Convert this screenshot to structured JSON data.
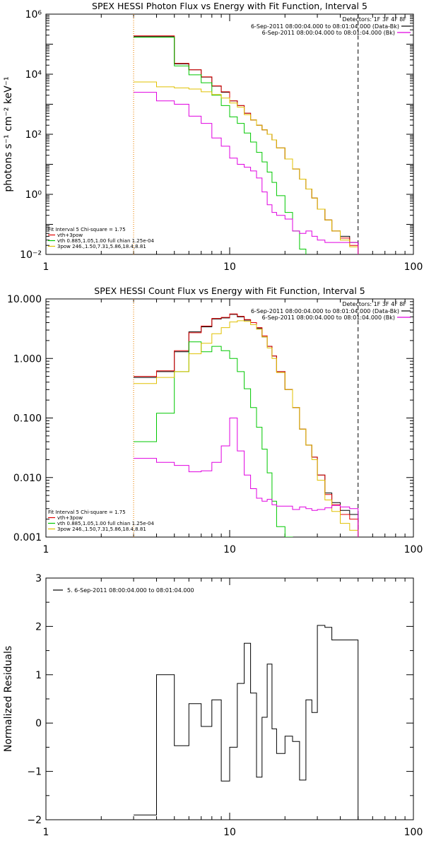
{
  "chart_data": [
    {
      "type": "line",
      "title": "SPEX HESSI Photon Flux vs Energy with Fit Function, Interval 5",
      "xlabel": "",
      "ylabel": "photons s⁻¹ cm⁻² keV⁻¹",
      "xscale": "log",
      "yscale": "log",
      "xlim": [
        1,
        100
      ],
      "ylim": [
        0.01,
        1000000
      ],
      "x_ticks": [
        {
          "v": 1,
          "label": "1"
        },
        {
          "v": 10,
          "label": "10"
        },
        {
          "v": 100,
          "label": "100"
        }
      ],
      "y_ticks": [
        {
          "v": 0.01,
          "label": "10⁻²"
        },
        {
          "v": 1,
          "label": "10⁰"
        },
        {
          "v": 100,
          "label": "10²"
        },
        {
          "v": 10000,
          "label": "10⁴"
        },
        {
          "v": 1000000,
          "label": "10⁶"
        }
      ],
      "vlines": [
        {
          "x": 3,
          "style": "dotted",
          "color": "#000000"
        },
        {
          "x": 3,
          "style": "dotted",
          "color": "#ff8c00"
        },
        {
          "x": 50,
          "style": "dashed",
          "color": "#000000"
        }
      ],
      "bin_edges": [
        3,
        4,
        5,
        6,
        7,
        8,
        9,
        10,
        11,
        12,
        13,
        14,
        15,
        16,
        17,
        18,
        20,
        22,
        24,
        26,
        28,
        30,
        33,
        36,
        40,
        45,
        50
      ],
      "series": [
        {
          "name": "data",
          "color": "#000000",
          "values": [
            180000,
            180000,
            22000,
            14000,
            8000,
            4000,
            2500,
            1300,
            900,
            500,
            300,
            200,
            140,
            100,
            65,
            35,
            15,
            7,
            3.2,
            1.5,
            0.75,
            0.32,
            0.14,
            0.06,
            0.04,
            0.025
          ]
        },
        {
          "name": "vth+3pow",
          "color": "#e00000",
          "values": [
            190000,
            190000,
            23000,
            14000,
            8200,
            4100,
            2600,
            1300,
            900,
            500,
            300,
            200,
            140,
            100,
            65,
            35,
            15,
            7,
            3.2,
            1.5,
            0.75,
            0.32,
            0.14,
            0.06,
            0.035,
            0.02
          ]
        },
        {
          "name": "vth 0.885,1.05,1.00  full chian 1.25e-04",
          "color": "#00c800",
          "values": [
            170000,
            170000,
            19000,
            9500,
            5200,
            2000,
            900,
            380,
            230,
            110,
            55,
            25,
            12,
            5.5,
            2.5,
            0.9,
            0.25,
            0.06,
            0.015,
            0.006,
            0.004
          ]
        },
        {
          "name": "3pow 246.,1.50,7.31,5.86,18.4,8.81",
          "color": "#e0c000",
          "values": [
            5500,
            3800,
            3500,
            3200,
            2600,
            2100,
            1600,
            1100,
            800,
            450,
            300,
            200,
            140,
            100,
            65,
            35,
            15,
            7,
            3.2,
            1.5,
            0.75,
            0.32,
            0.14,
            0.06,
            0.03,
            0.018
          ]
        },
        {
          "name": "",
          "color": "#e000e0",
          "values": [
            2500,
            1300,
            1000,
            400,
            230,
            75,
            40,
            16,
            10,
            8,
            6,
            3.5,
            1.2,
            0.45,
            0.25,
            0.2,
            0.15,
            0.06,
            0.05,
            0.06,
            0.04,
            0.03,
            0.025,
            0.025,
            0.025,
            0.025
          ]
        }
      ],
      "legend_top": {
        "title": "Detectors: 1F 3F 4F 8F",
        "entries": [
          {
            "label": "6-Sep-2011 08:00:04.000 to 08:01:04.000 (Data-Bk)",
            "color": "#000000"
          },
          {
            "label": "6-Sep-2011 08:00:04.000 to 08:01:04.000 (Bk)",
            "color": "#e000e0"
          }
        ]
      },
      "legend_fit": {
        "header": "Fit Interval 5    Chi-square = 1.75",
        "entries": [
          {
            "label": "vth+3pow",
            "color": "#e00000"
          },
          {
            "label": "vth 0.885,1.05,1.00  full chian 1.25e-04",
            "color": "#00c800"
          },
          {
            "label": "3pow 246.,1.50,7.31,5.86,18.4,8.81",
            "color": "#e0c000"
          }
        ]
      }
    },
    {
      "type": "line",
      "title": "SPEX HESSI Count Flux vs Energy with Fit Function, Interval 5",
      "xlabel": "",
      "ylabel": "",
      "xscale": "log",
      "yscale": "log",
      "xlim": [
        1,
        100
      ],
      "ylim": [
        0.001,
        10
      ],
      "x_ticks": [
        {
          "v": 1,
          "label": "1"
        },
        {
          "v": 10,
          "label": "10"
        },
        {
          "v": 100,
          "label": "100"
        }
      ],
      "y_ticks": [
        {
          "v": 0.001,
          "label": "0.001"
        },
        {
          "v": 0.01,
          "label": "0.010"
        },
        {
          "v": 0.1,
          "label": "0.100"
        },
        {
          "v": 1,
          "label": "1.000"
        },
        {
          "v": 10,
          "label": "10.000"
        }
      ],
      "vlines": [
        {
          "x": 3,
          "style": "dotted",
          "color": "#000000"
        },
        {
          "x": 3,
          "style": "dotted",
          "color": "#ff8c00"
        },
        {
          "x": 50,
          "style": "dashed",
          "color": "#000000"
        }
      ],
      "bin_edges": [
        3,
        4,
        5,
        6,
        7,
        8,
        9,
        10,
        11,
        12,
        13,
        14,
        15,
        16,
        17,
        18,
        20,
        22,
        24,
        26,
        28,
        30,
        33,
        36,
        40,
        45,
        50
      ],
      "series": [
        {
          "name": "data",
          "color": "#000000",
          "values": [
            0.48,
            0.6,
            1.3,
            2.8,
            3.4,
            4.6,
            4.8,
            5.5,
            5.0,
            4.4,
            4.0,
            3.2,
            2.3,
            1.6,
            1.1,
            0.6,
            0.3,
            0.15,
            0.065,
            0.035,
            0.022,
            0.011,
            0.0055,
            0.0038,
            0.0028,
            0.0024
          ]
        },
        {
          "name": "vth+3pow",
          "color": "#e00000",
          "values": [
            0.5,
            0.62,
            1.35,
            2.7,
            3.5,
            4.7,
            4.9,
            5.6,
            5.1,
            4.5,
            4.0,
            3.3,
            2.4,
            1.6,
            1.1,
            0.6,
            0.3,
            0.15,
            0.065,
            0.035,
            0.022,
            0.011,
            0.0052,
            0.0035,
            0.0024,
            0.002
          ]
        },
        {
          "name": "vth 0.885,1.05,1.00  full chian 1.25e-04",
          "color": "#00c800",
          "values": [
            0.04,
            0.12,
            0.6,
            1.9,
            1.3,
            1.6,
            1.35,
            1.0,
            0.6,
            0.31,
            0.15,
            0.07,
            0.03,
            0.012,
            0.004,
            0.0015,
            0.001
          ]
        },
        {
          "name": "3pow 246.,1.50,7.31,5.86,18.4,8.81",
          "color": "#e0c000",
          "values": [
            0.38,
            0.48,
            0.6,
            1.2,
            1.8,
            2.6,
            3.3,
            4.1,
            4.3,
            4.2,
            3.7,
            3.1,
            2.3,
            1.5,
            1.0,
            0.58,
            0.3,
            0.15,
            0.065,
            0.035,
            0.02,
            0.009,
            0.0042,
            0.0027,
            0.0017,
            0.0013
          ]
        },
        {
          "name": "",
          "color": "#e000e0",
          "values": [
            0.021,
            0.018,
            0.016,
            0.0125,
            0.013,
            0.018,
            0.034,
            0.1,
            0.028,
            0.011,
            0.0065,
            0.0045,
            0.004,
            0.0043,
            0.0035,
            0.0033,
            0.0033,
            0.0029,
            0.0032,
            0.003,
            0.0028,
            0.0029,
            0.0031,
            0.0034,
            0.0032,
            0.003
          ]
        }
      ],
      "legend_top": {
        "title": "Detectors: 1F 3F 4F 8F",
        "entries": [
          {
            "label": "6-Sep-2011 08:00:04.000 to 08:01:04.000 (Data-Bk)",
            "color": "#000000"
          },
          {
            "label": "6-Sep-2011 08:00:04.000 to 08:01:04.000 (Bk)",
            "color": "#e000e0"
          }
        ]
      },
      "legend_fit": {
        "header": "Fit Interval 5    Chi-square = 1.75",
        "entries": [
          {
            "label": "vth+3pow",
            "color": "#e00000"
          },
          {
            "label": "vth 0.885,1.05,1.00  full chian 1.25e-04",
            "color": "#00c800"
          },
          {
            "label": "3pow 246.,1.50,7.31,5.86,18.4,8.81",
            "color": "#e0c000"
          }
        ]
      }
    },
    {
      "type": "line",
      "title": "",
      "xlabel": "",
      "ylabel": "Normalized Residuals",
      "xscale": "log",
      "yscale": "linear",
      "xlim": [
        1,
        100
      ],
      "ylim": [
        -2,
        3
      ],
      "x_ticks": [
        {
          "v": 1,
          "label": "1"
        },
        {
          "v": 10,
          "label": "10"
        },
        {
          "v": 100,
          "label": "100"
        }
      ],
      "y_ticks": [
        {
          "v": -2,
          "label": "−2"
        },
        {
          "v": -1,
          "label": "−1"
        },
        {
          "v": 0,
          "label": "0"
        },
        {
          "v": 1,
          "label": "1"
        },
        {
          "v": 2,
          "label": "2"
        },
        {
          "v": 3,
          "label": "3"
        }
      ],
      "vlines": [],
      "bin_edges": [
        3,
        4,
        5,
        6,
        7,
        8,
        9,
        10,
        11,
        12,
        13,
        14,
        15,
        16,
        17,
        18,
        20,
        22,
        24,
        26,
        28,
        30,
        33,
        36,
        40,
        45,
        50
      ],
      "series": [
        {
          "name": "5.  6-Sep-2011 08:00:04.000 to 08:01:04.000",
          "color": "#000000",
          "values": [
            -1.9,
            1.0,
            -0.47,
            0.4,
            -0.07,
            0.48,
            -1.2,
            -0.5,
            0.82,
            1.65,
            0.62,
            -1.12,
            0.12,
            1.22,
            -0.12,
            -0.63,
            -0.27,
            -0.38,
            -1.18,
            0.48,
            0.22,
            2.02,
            1.98,
            1.72,
            1.72,
            1.72
          ]
        }
      ],
      "legend_top": {
        "title": "",
        "entries": [
          {
            "label": "5.  6-Sep-2011 08:00:04.000 to 08:01:04.000",
            "color": "#000000"
          }
        ]
      },
      "legend_fit": null
    }
  ]
}
